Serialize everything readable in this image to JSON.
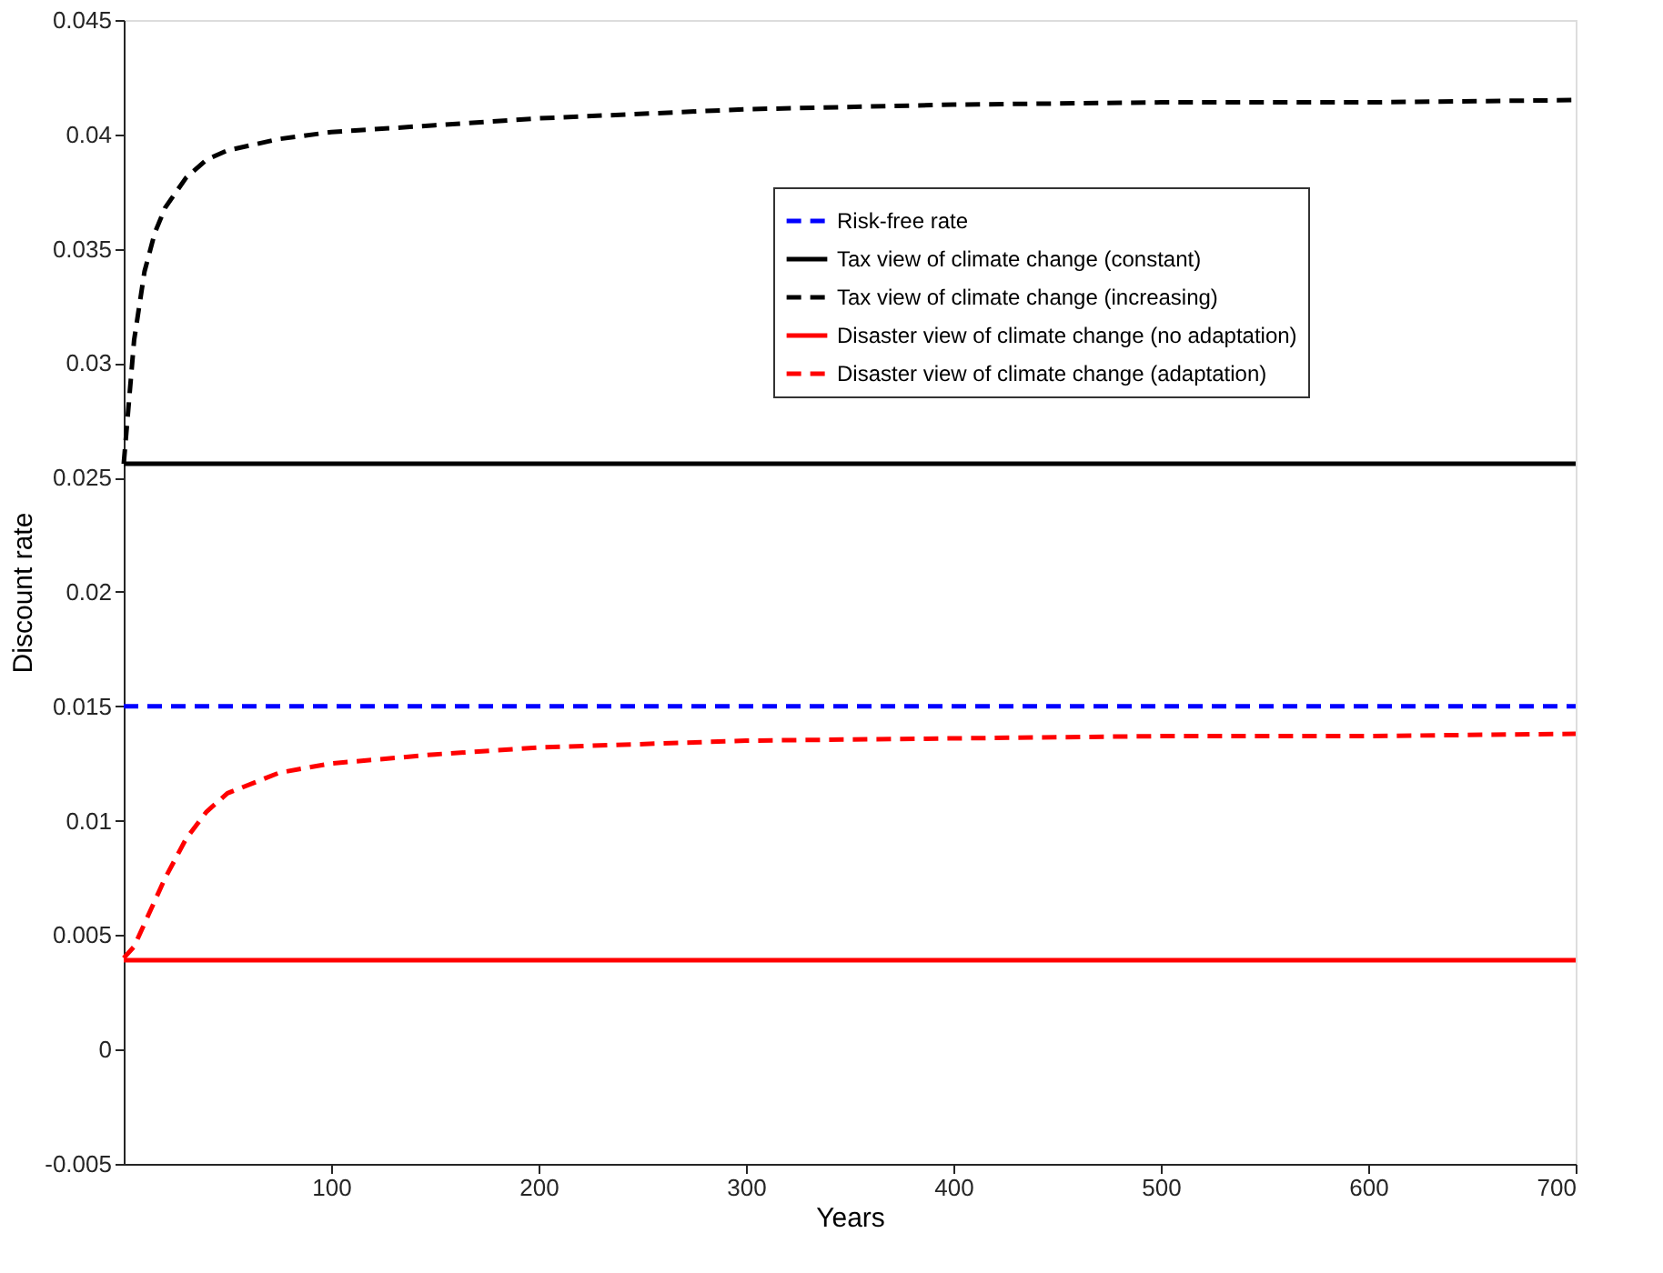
{
  "chart_data": {
    "type": "line",
    "xlabel": "Years",
    "ylabel": "Discount rate",
    "xlim": [
      0,
      700
    ],
    "xticks": [
      100,
      200,
      300,
      400,
      500,
      600,
      700
    ],
    "ylim": [
      -0.005,
      0.045
    ],
    "yticks": [
      -0.005,
      0,
      0.005,
      0.01,
      0.015,
      0.02,
      0.025,
      0.03,
      0.035,
      0.04,
      0.045
    ],
    "grid": false,
    "legend": "top right",
    "series": [
      {
        "name": "Risk-free rate",
        "color": "#0000ff",
        "line_style": "dashed",
        "x": [
          0,
          700
        ],
        "values": [
          0.015,
          0.015
        ]
      },
      {
        "name": "Tax view of climate change (constant)",
        "color": "#000000",
        "line_style": "solid",
        "x": [
          0,
          700
        ],
        "values": [
          0.0256,
          0.0256
        ]
      },
      {
        "name": "Tax view of climate change (increasing)",
        "color": "#000000",
        "line_style": "dashed",
        "x": [
          0,
          5,
          10,
          15,
          20,
          30,
          40,
          50,
          75,
          100,
          150,
          200,
          300,
          400,
          500,
          600,
          700
        ],
        "values": [
          0.0256,
          0.031,
          0.034,
          0.0357,
          0.0368,
          0.0381,
          0.0389,
          0.0393,
          0.0398,
          0.0401,
          0.0404,
          0.0407,
          0.0411,
          0.0413,
          0.0414,
          0.0414,
          0.0415
        ]
      },
      {
        "name": "Disaster view of climate change (no adaptation)",
        "color": "#ff0000",
        "line_style": "solid",
        "x": [
          0,
          700
        ],
        "values": [
          0.0039,
          0.0039
        ]
      },
      {
        "name": "Disaster view of climate change (adaptation)",
        "color": "#ff0000",
        "line_style": "dashed",
        "x": [
          0,
          5,
          10,
          20,
          30,
          40,
          50,
          75,
          100,
          150,
          200,
          300,
          400,
          500,
          600,
          700
        ],
        "values": [
          0.004,
          0.0045,
          0.0055,
          0.0075,
          0.0092,
          0.0104,
          0.0112,
          0.0121,
          0.0125,
          0.0129,
          0.0132,
          0.0135,
          0.0136,
          0.0137,
          0.0137,
          0.0138
        ]
      }
    ]
  }
}
